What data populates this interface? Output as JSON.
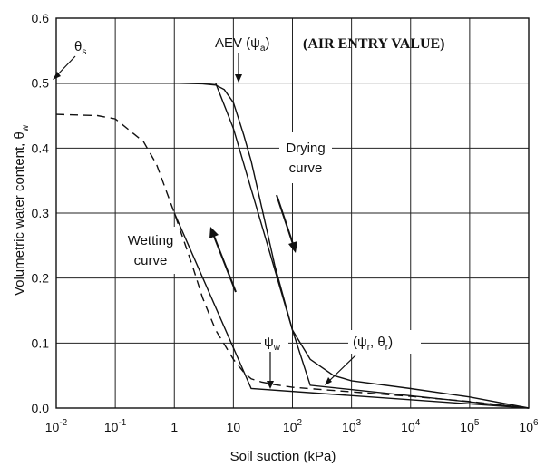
{
  "chart_data": {
    "type": "line",
    "title": "",
    "xlabel": "Soil suction (kPa)",
    "ylabel": "Volumetric water content, θ_w",
    "xscale": "log",
    "xlim": [
      0.01,
      1000000
    ],
    "ylim": [
      0,
      0.6
    ],
    "grid": true,
    "x_ticks": [
      {
        "value": 0.01,
        "base": "10",
        "exp": "-2"
      },
      {
        "value": 0.1,
        "base": "10",
        "exp": "-1"
      },
      {
        "value": 1,
        "base": "1",
        "exp": ""
      },
      {
        "value": 10,
        "base": "10",
        "exp": ""
      },
      {
        "value": 100,
        "base": "10",
        "exp": "2"
      },
      {
        "value": 1000,
        "base": "10",
        "exp": "3"
      },
      {
        "value": 10000,
        "base": "10",
        "exp": "4"
      },
      {
        "value": 100000,
        "base": "10",
        "exp": "5"
      },
      {
        "value": 1000000,
        "base": "10",
        "exp": "6"
      }
    ],
    "y_ticks": [
      "0.0",
      "0.1",
      "0.2",
      "0.3",
      "0.4",
      "0.5",
      "0.6"
    ],
    "series": [
      {
        "style": "solid",
        "x": [
          0.01,
          1,
          3,
          5,
          7,
          10,
          15,
          20,
          30,
          50,
          100,
          200,
          500,
          1000,
          10000,
          100000,
          1000000
        ],
        "y": [
          0.5,
          0.5,
          0.499,
          0.497,
          0.49,
          0.47,
          0.42,
          0.38,
          0.31,
          0.22,
          0.12,
          0.075,
          0.05,
          0.042,
          0.03,
          0.017,
          0
        ]
      },
      {
        "style": "dashed",
        "x": [
          0.01,
          0.05,
          0.1,
          0.3,
          0.5,
          1,
          2,
          3,
          5,
          10,
          15,
          20,
          30,
          50,
          100,
          1000,
          10000,
          100000,
          1000000
        ],
        "y": [
          0.452,
          0.45,
          0.445,
          0.41,
          0.375,
          0.3,
          0.22,
          0.17,
          0.12,
          0.075,
          0.055,
          0.045,
          0.04,
          0.036,
          0.032,
          0.025,
          0.018,
          0.01,
          0
        ]
      },
      {
        "style": "solid",
        "x": [
          0.01,
          5,
          10,
          100,
          200,
          1000000
        ],
        "y": [
          0.5,
          0.5,
          0.43,
          0.12,
          0.035,
          0
        ]
      },
      {
        "style": "solid",
        "x": [
          1,
          20,
          1000000
        ],
        "y": [
          0.3,
          0.03,
          0
        ]
      }
    ],
    "annotations": {
      "theta_s": {
        "main": "θ",
        "sub": "s"
      },
      "aev": {
        "pre": "AEV (ψ",
        "sub": "a",
        "post": ")"
      },
      "aev_bold": "(AIR ENTRY VALUE)",
      "drying_line1": "Drying",
      "drying_line2": "curve",
      "wetting_line1": "Wetting",
      "wetting_line2": "curve",
      "psi_w": {
        "main": "ψ",
        "sub": "w"
      },
      "residual": {
        "pre": "(ψ",
        "sub1": "r",
        "mid": ", θ",
        "sub2": "r",
        "post": ")"
      }
    }
  }
}
